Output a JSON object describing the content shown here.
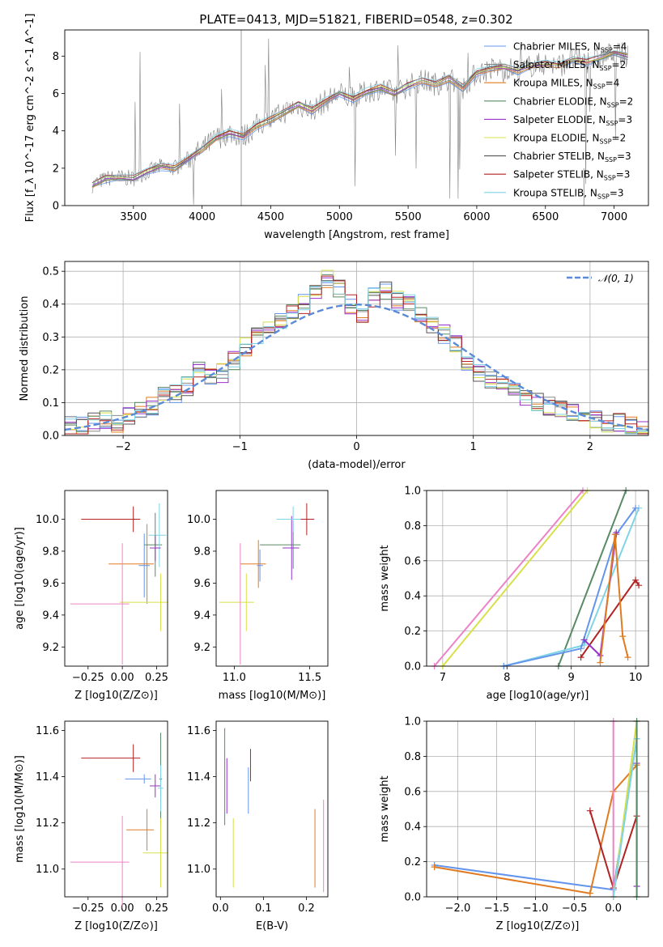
{
  "title": "PLATE=0413, MJD=51821, FIBERID=0548, z=0.302",
  "colors": {
    "chabrier_miles": "#6495ed",
    "salpeter_miles": "#8a8a8a",
    "kroupa_miles": "#e07b22",
    "chabrier_elodie": "#5a8a65",
    "salpeter_elodie": "#9932cc",
    "kroupa_elodie": "#d8e04a",
    "chabrier_stelib": "#555555",
    "salpeter_stelib": "#b22222",
    "kroupa_stelib": "#7fd4e6",
    "data": "#808080",
    "normal": "#5b8bd6",
    "pink": "#ee82c8"
  },
  "chart_data": [
    {
      "id": "spectrum",
      "type": "line",
      "xlabel": "wavelength [Angstrom, rest frame]",
      "ylabel": "Flux [f_λ 10^-17 erg cm^-2 s^-1 A^-1]",
      "xlim": [
        3000,
        7250
      ],
      "ylim": [
        0,
        9.4
      ],
      "xticks": [
        3500,
        4000,
        4500,
        5000,
        5500,
        6000,
        6500,
        7000
      ],
      "yticks": [
        0,
        2,
        4,
        6,
        8
      ],
      "legend_position": "top-right",
      "legend": [
        {
          "key": "chabrier_miles",
          "text": "Chabrier MILES, N",
          "sub": "SSP",
          "val": "=4"
        },
        {
          "key": "salpeter_miles",
          "text": "Salpeter MILES, N",
          "sub": "SSP",
          "val": "=2"
        },
        {
          "key": "kroupa_miles",
          "text": "Kroupa MILES, N",
          "sub": "SSP",
          "val": "=4"
        },
        {
          "key": "chabrier_elodie",
          "text": "Chabrier ELODIE, N",
          "sub": "SSP",
          "val": "=2"
        },
        {
          "key": "salpeter_elodie",
          "text": "Salpeter ELODIE, N",
          "sub": "SSP",
          "val": "=3"
        },
        {
          "key": "kroupa_elodie",
          "text": "Kroupa ELODIE, N",
          "sub": "SSP",
          "val": "=2"
        },
        {
          "key": "chabrier_stelib",
          "text": "Chabrier STELIB, N",
          "sub": "SSP",
          "val": "=3"
        },
        {
          "key": "salpeter_stelib",
          "text": "Salpeter STELIB, N",
          "sub": "SSP",
          "val": "=3"
        },
        {
          "key": "kroupa_stelib",
          "text": "Kroupa STELIB, N",
          "sub": "SSP",
          "val": "=3"
        }
      ],
      "model_wavelength": [
        3200,
        3300,
        3400,
        3500,
        3600,
        3700,
        3800,
        3900,
        4000,
        4100,
        4200,
        4300,
        4400,
        4500,
        4600,
        4700,
        4800,
        4900,
        5000,
        5100,
        5200,
        5300,
        5400,
        5500,
        5600,
        5700,
        5800,
        5900,
        6000,
        6100,
        6200,
        6300,
        6400,
        6500,
        6600,
        6700,
        6800,
        6900,
        7000,
        7100
      ],
      "model_flux": [
        1.1,
        1.45,
        1.5,
        1.45,
        1.8,
        2.1,
        2.0,
        2.5,
        3.0,
        3.6,
        3.9,
        3.7,
        4.3,
        4.6,
        5.0,
        5.4,
        5.1,
        5.6,
        6.0,
        5.7,
        6.1,
        6.3,
        6.0,
        6.4,
        6.7,
        6.5,
        6.8,
        6.3,
        7.1,
        7.3,
        7.4,
        7.2,
        7.5,
        7.6,
        7.5,
        7.8,
        7.7,
        7.9,
        8.2,
        8.0
      ]
    },
    {
      "id": "residuals",
      "type": "line",
      "xlabel": "(data-model)/error",
      "ylabel": "Normed distribution",
      "xlim": [
        -2.5,
        2.5
      ],
      "ylim": [
        0,
        0.53
      ],
      "xticks": [
        -2,
        -1,
        0,
        1,
        2
      ],
      "yticks": [
        0.0,
        0.1,
        0.2,
        0.3,
        0.4,
        0.5
      ],
      "grid": true,
      "legend_position": "top-right",
      "legend": [
        "𝒩(0, 1)"
      ],
      "bin_centers": [
        -2.45,
        -2.35,
        -2.25,
        -2.15,
        -2.05,
        -1.95,
        -1.85,
        -1.75,
        -1.65,
        -1.55,
        -1.45,
        -1.35,
        -1.25,
        -1.15,
        -1.05,
        -0.95,
        -0.85,
        -0.75,
        -0.65,
        -0.55,
        -0.45,
        -0.35,
        -0.25,
        -0.15,
        -0.05,
        0.05,
        0.15,
        0.25,
        0.35,
        0.45,
        0.55,
        0.65,
        0.75,
        0.85,
        0.95,
        1.05,
        1.15,
        1.25,
        1.35,
        1.45,
        1.55,
        1.65,
        1.75,
        1.85,
        1.95,
        2.05,
        2.15,
        2.25,
        2.35,
        2.45
      ],
      "hist_values": [
        0.03,
        0.03,
        0.04,
        0.05,
        0.04,
        0.06,
        0.08,
        0.09,
        0.12,
        0.13,
        0.15,
        0.2,
        0.18,
        0.19,
        0.23,
        0.27,
        0.3,
        0.32,
        0.35,
        0.38,
        0.4,
        0.44,
        0.48,
        0.45,
        0.4,
        0.37,
        0.42,
        0.44,
        0.41,
        0.4,
        0.36,
        0.33,
        0.31,
        0.28,
        0.22,
        0.19,
        0.17,
        0.15,
        0.13,
        0.11,
        0.1,
        0.09,
        0.08,
        0.07,
        0.05,
        0.05,
        0.04,
        0.04,
        0.03,
        0.03
      ]
    },
    {
      "id": "age_vs_Z",
      "type": "scatter",
      "xlabel": "Z [log10(Z/Z⊙)]",
      "ylabel": "age [log10(age/yr)]",
      "xlim": [
        -0.42,
        0.33
      ],
      "ylim": [
        9.08,
        10.18
      ],
      "xticks": [
        -0.25,
        0.0,
        0.25
      ],
      "yticks": [
        9.2,
        9.4,
        9.6,
        9.8,
        10.0
      ],
      "points": [
        {
          "c": "salpeter_stelib",
          "x": 0.08,
          "y": 10.0,
          "xe": 0.38,
          "ye": 0.08
        },
        {
          "c": "chabrier_miles",
          "x": 0.16,
          "y": 9.71,
          "xe": 0.04,
          "ye": 0.2
        },
        {
          "c": "kroupa_miles",
          "x": 0.18,
          "y": 9.72,
          "xe": 0.28,
          "ye": 0.25
        },
        {
          "c": "chabrier_elodie",
          "x": 0.24,
          "y": 9.84,
          "xe": 0.08,
          "ye": 0.2
        },
        {
          "c": "kroupa_elodie",
          "x": 0.28,
          "y": 9.48,
          "xe": 0.3,
          "ye": 0.18
        },
        {
          "c": "kroupa_stelib",
          "x": 0.27,
          "y": 9.9,
          "xe": 0.08,
          "ye": 0.2
        },
        {
          "c": "pink",
          "x": 0.0,
          "y": 9.47,
          "xe": 0.38,
          "ye": 0.38
        },
        {
          "c": "salpeter_elodie",
          "x": 0.24,
          "y": 9.82,
          "xe": 0.04,
          "ye": 0.08
        }
      ]
    },
    {
      "id": "age_vs_mass",
      "type": "scatter",
      "xlabel": "mass [log10(M/M⊙)]",
      "ylabel": "",
      "xlim": [
        10.88,
        11.62
      ],
      "ylim": [
        9.08,
        10.18
      ],
      "xticks": [
        11.0,
        11.5
      ],
      "yticks": [
        9.2,
        9.4,
        9.6,
        9.8,
        10.0
      ],
      "points": [
        {
          "c": "salpeter_stelib",
          "x": 11.48,
          "y": 10.0,
          "xe": 0.06,
          "ye": 0.1
        },
        {
          "c": "kroupa_miles",
          "x": 11.16,
          "y": 9.72,
          "xe": 0.12,
          "ye": 0.15
        },
        {
          "c": "chabrier_elodie",
          "x": 11.39,
          "y": 9.84,
          "xe": 0.22,
          "ye": 0.15
        },
        {
          "c": "kroupa_elodie",
          "x": 11.08,
          "y": 9.48,
          "xe": 0.18,
          "ye": 0.18
        },
        {
          "c": "salpeter_elodie",
          "x": 11.38,
          "y": 9.82,
          "xe": 0.06,
          "ye": 0.2
        },
        {
          "c": "pink",
          "x": 11.04,
          "y": 9.47,
          "xe": 0.0,
          "ye": 0.38
        },
        {
          "c": "kroupa_stelib",
          "x": 11.39,
          "y": 10.0,
          "xe": 0.11,
          "ye": 0.08
        },
        {
          "c": "chabrier_miles",
          "x": 11.17,
          "y": 9.71,
          "xe": 0.02,
          "ye": 0.1
        }
      ]
    },
    {
      "id": "weight_vs_age",
      "type": "line",
      "xlabel": "age [log10(age/yr)]",
      "ylabel": "mass weight",
      "xlim": [
        6.75,
        10.2
      ],
      "ylim": [
        0,
        1.0
      ],
      "xticks": [
        7,
        8,
        9,
        10
      ],
      "yticks": [
        0.0,
        0.2,
        0.4,
        0.6,
        0.8,
        1.0
      ],
      "grid": true,
      "series": [
        {
          "c": "kroupa_elodie",
          "x": [
            7.0,
            9.25
          ],
          "y": [
            0.0,
            1.0
          ]
        },
        {
          "c": "pink",
          "x": [
            6.87,
            9.18
          ],
          "y": [
            0.0,
            1.0
          ]
        },
        {
          "c": "chabrier_elodie",
          "x": [
            8.8,
            9.85
          ],
          "y": [
            0.0,
            1.0
          ]
        },
        {
          "c": "kroupa_stelib",
          "x": [
            7.95,
            9.2,
            10.05
          ],
          "y": [
            0.0,
            0.12,
            0.9
          ]
        },
        {
          "c": "chabrier_miles",
          "x": [
            7.95,
            9.15,
            9.7,
            10.0
          ],
          "y": [
            0.0,
            0.1,
            0.75,
            0.9
          ]
        },
        {
          "c": "salpeter_stelib",
          "x": [
            9.15,
            10.0,
            10.05
          ],
          "y": [
            0.05,
            0.49,
            0.46
          ]
        },
        {
          "c": "salpeter_elodie",
          "x": [
            9.2,
            9.45,
            9.7
          ],
          "y": [
            0.15,
            0.06,
            0.76
          ]
        },
        {
          "c": "kroupa_miles",
          "x": [
            9.45,
            9.68,
            9.8,
            9.88
          ],
          "y": [
            0.02,
            0.75,
            0.17,
            0.05
          ]
        }
      ]
    },
    {
      "id": "mass_vs_Z",
      "type": "scatter",
      "xlabel": "Z [log10(Z/Z⊙)]",
      "ylabel": "mass [log10(M/M⊙)]",
      "xlim": [
        -0.42,
        0.33
      ],
      "ylim": [
        10.88,
        11.64
      ],
      "xticks": [
        -0.25,
        0.0,
        0.25
      ],
      "yticks": [
        11.0,
        11.2,
        11.4,
        11.6
      ],
      "points": [
        {
          "c": "salpeter_stelib",
          "x": 0.08,
          "y": 11.48,
          "xe": 0.38,
          "ye": 0.06
        },
        {
          "c": "chabrier_miles",
          "x": 0.16,
          "y": 11.39,
          "xe": 0.14,
          "ye": 0.02
        },
        {
          "c": "kroupa_miles",
          "x": 0.18,
          "y": 11.17,
          "xe": 0.15,
          "ye": 0.09
        },
        {
          "c": "chabrier_elodie",
          "x": 0.28,
          "y": 11.39,
          "xe": 0.01,
          "ye": 0.2
        },
        {
          "c": "kroupa_elodie",
          "x": 0.28,
          "y": 11.07,
          "xe": 0.13,
          "ye": 0.15
        },
        {
          "c": "salpeter_elodie",
          "x": 0.24,
          "y": 11.36,
          "xe": 0.04,
          "ye": 0.05
        },
        {
          "c": "pink",
          "x": 0.0,
          "y": 11.03,
          "xe": 0.38,
          "ye": 0.2
        },
        {
          "c": "kroupa_stelib",
          "x": 0.28,
          "y": 11.35,
          "xe": 0.02,
          "ye": 0.1
        }
      ]
    },
    {
      "id": "mass_vs_ebv",
      "type": "scatter",
      "xlabel": "E(B-V)",
      "ylabel": "",
      "xlim": [
        -0.01,
        0.25
      ],
      "ylim": [
        10.88,
        11.64
      ],
      "xticks": [
        0.0,
        0.1,
        0.2
      ],
      "yticks": [
        11.0,
        11.2,
        11.4,
        11.6
      ],
      "points": [
        {
          "c": "chabrier_elodie",
          "x": 0.01,
          "y": 11.4,
          "xe": 0.0,
          "ye": 0.21
        },
        {
          "c": "salpeter_elodie",
          "x": 0.015,
          "y": 11.36,
          "xe": 0.0,
          "ye": 0.12
        },
        {
          "c": "kroupa_elodie",
          "x": 0.03,
          "y": 11.07,
          "xe": 0.0,
          "ye": 0.15
        },
        {
          "c": "chabrier_miles",
          "x": 0.065,
          "y": 11.34,
          "xe": 0.0,
          "ye": 0.1
        },
        {
          "c": "salpeter_stelib",
          "x": 0.07,
          "y": 11.45,
          "xe": 0.0,
          "ye": 0.07
        },
        {
          "c": "kroupa_miles",
          "x": 0.22,
          "y": 11.09,
          "xe": 0.0,
          "ye": 0.17
        },
        {
          "c": "pink",
          "x": 0.24,
          "y": 11.1,
          "xe": 0.0,
          "ye": 0.2
        }
      ]
    },
    {
      "id": "weight_vs_Z",
      "type": "line",
      "xlabel": "Z [log10(Z/Z⊙)]",
      "ylabel": "mass weight",
      "xlim": [
        -2.4,
        0.45
      ],
      "ylim": [
        0,
        1.0
      ],
      "xticks": [
        -2.0,
        -1.5,
        -1.0,
        -0.5,
        0.0
      ],
      "yticks": [
        0.0,
        0.2,
        0.4,
        0.6,
        0.8,
        1.0
      ],
      "grid": true,
      "series": [
        {
          "c": "chabrier_miles",
          "x": [
            -2.3,
            0.0,
            0.3
          ],
          "y": [
            0.18,
            0.04,
            0.9
          ]
        },
        {
          "c": "kroupa_miles",
          "x": [
            -2.3,
            -0.3,
            0.0,
            0.3
          ],
          "y": [
            0.17,
            0.02,
            0.6,
            0.75
          ]
        },
        {
          "c": "salpeter_stelib",
          "x": [
            -0.3,
            0.0,
            0.3
          ],
          "y": [
            0.49,
            0.05,
            0.46
          ]
        },
        {
          "c": "pink",
          "x": [
            0.0,
            0.0
          ],
          "y": [
            0.0,
            1.0
          ]
        },
        {
          "c": "kroupa_elodie",
          "x": [
            0.0,
            0.3
          ],
          "y": [
            0.0,
            1.0
          ]
        },
        {
          "c": "kroupa_stelib",
          "x": [
            0.0,
            0.3
          ],
          "y": [
            0.0,
            0.9
          ]
        },
        {
          "c": "salpeter_elodie",
          "x": [
            0.3,
            0.3
          ],
          "y": [
            0.06,
            0.76
          ]
        },
        {
          "c": "chabrier_elodie",
          "x": [
            0.3,
            0.3
          ],
          "y": [
            0.0,
            1.0
          ]
        }
      ]
    }
  ]
}
